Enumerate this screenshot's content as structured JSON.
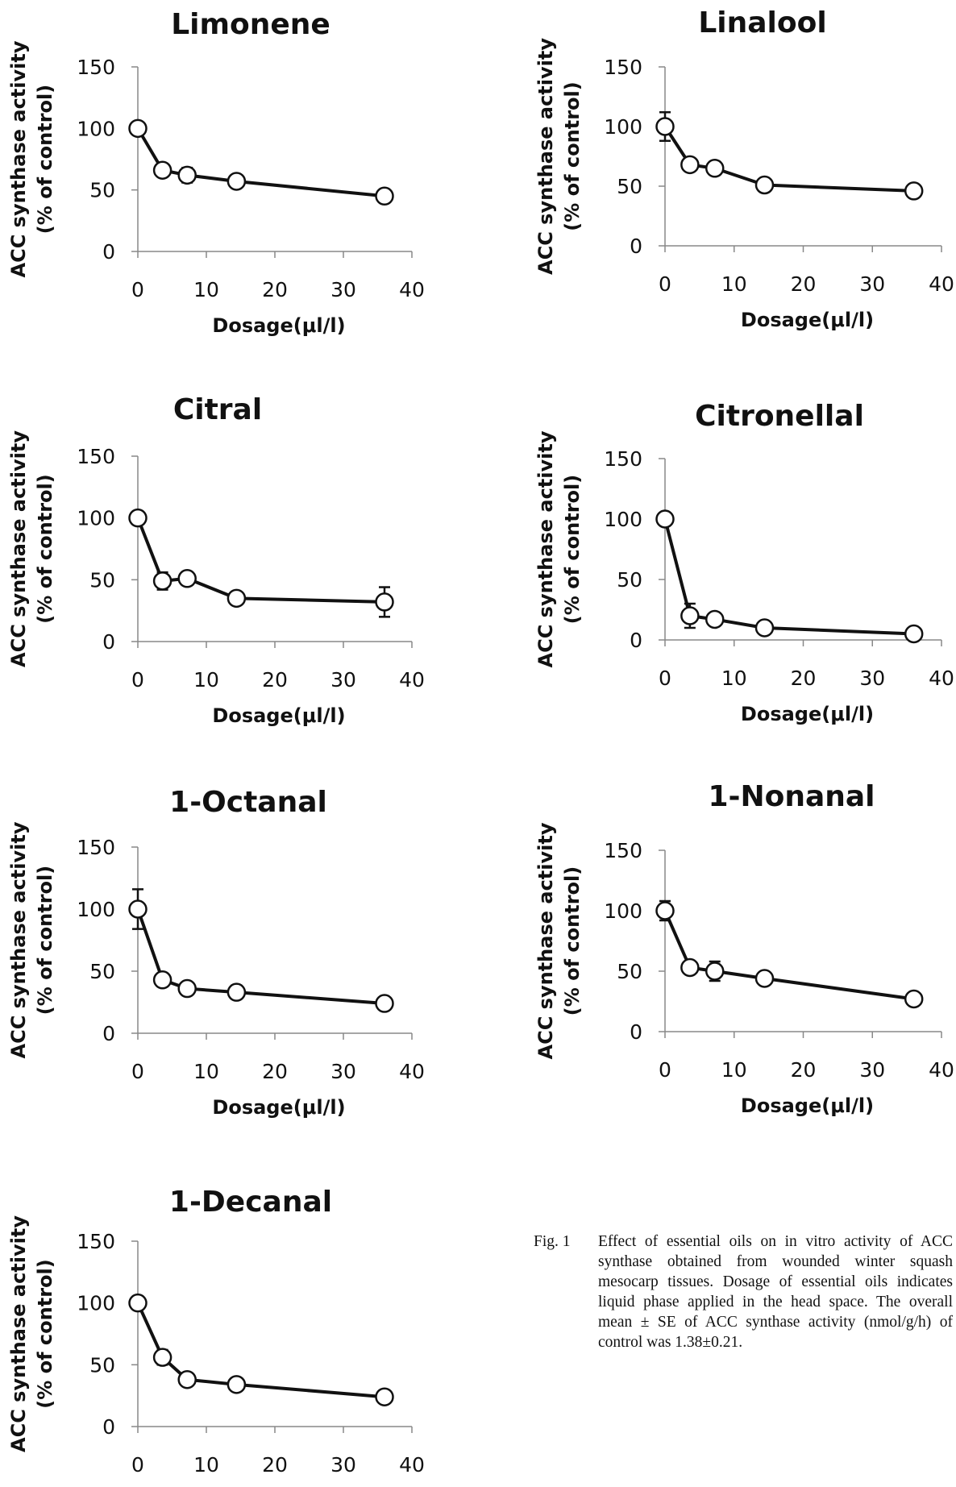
{
  "chart_data": [
    {
      "type": "line",
      "title": "Limonene",
      "xlabel": "Dosage(μl/l)",
      "ylabel": [
        "ACC synthase activity",
        "(% of control)"
      ],
      "xlim": [
        0,
        40
      ],
      "ylim": [
        0,
        150
      ],
      "xticks": [
        "0",
        "10",
        "20",
        "30",
        "40"
      ],
      "yticks": [
        "0",
        "50",
        "100",
        "150"
      ],
      "x": [
        0,
        3.6,
        7.2,
        14.4,
        36
      ],
      "y": [
        100,
        66,
        62,
        57,
        45
      ],
      "err": [
        0,
        0,
        6,
        5,
        0
      ]
    },
    {
      "type": "line",
      "title": "Linalool",
      "xlabel": "Dosage(μl/l)",
      "ylabel": [
        "ACC synthase activity",
        "(% of control)"
      ],
      "xlim": [
        0,
        40
      ],
      "ylim": [
        0,
        150
      ],
      "xticks": [
        "0",
        "10",
        "20",
        "30",
        "40"
      ],
      "yticks": [
        "0",
        "50",
        "100",
        "150"
      ],
      "x": [
        0,
        3.6,
        7.2,
        14.4,
        36
      ],
      "y": [
        100,
        68,
        65,
        51,
        46
      ],
      "err": [
        12,
        0,
        0,
        0,
        0
      ]
    },
    {
      "type": "line",
      "title": "Citral",
      "xlabel": "Dosage(μl/l)",
      "ylabel": [
        "ACC synthase activity",
        "(% of control)"
      ],
      "xlim": [
        0,
        40
      ],
      "ylim": [
        0,
        150
      ],
      "xticks": [
        "0",
        "10",
        "20",
        "30",
        "40"
      ],
      "yticks": [
        "0",
        "50",
        "100",
        "150"
      ],
      "x": [
        0,
        3.6,
        7.2,
        14.4,
        36
      ],
      "y": [
        100,
        49,
        51,
        35,
        32
      ],
      "err": [
        0,
        7,
        0,
        0,
        12
      ]
    },
    {
      "type": "line",
      "title": "Citronellal",
      "xlabel": "Dosage(μl/l)",
      "ylabel": [
        "ACC synthase activity",
        "(% of control)"
      ],
      "xlim": [
        0,
        40
      ],
      "ylim": [
        0,
        150
      ],
      "xticks": [
        "0",
        "10",
        "20",
        "30",
        "40"
      ],
      "yticks": [
        "0",
        "50",
        "100",
        "150"
      ],
      "x": [
        0,
        3.6,
        7.2,
        14.4,
        36
      ],
      "y": [
        100,
        20,
        17,
        10,
        5
      ],
      "err": [
        0,
        10,
        0,
        0,
        0
      ]
    },
    {
      "type": "line",
      "title": "1-Octanal",
      "xlabel": "Dosage(μl/l)",
      "ylabel": [
        "ACC synthase activity",
        "(% of control)"
      ],
      "xlim": [
        0,
        40
      ],
      "ylim": [
        0,
        150
      ],
      "xticks": [
        "0",
        "10",
        "20",
        "30",
        "40"
      ],
      "yticks": [
        "0",
        "50",
        "100",
        "150"
      ],
      "x": [
        0,
        3.6,
        7.2,
        14.4,
        36
      ],
      "y": [
        100,
        43,
        36,
        33,
        24
      ],
      "err": [
        16,
        0,
        0,
        0,
        0
      ]
    },
    {
      "type": "line",
      "title": "1-Nonanal",
      "xlabel": "Dosage(μl/l)",
      "ylabel": [
        "ACC synthase activity",
        "(% of control)"
      ],
      "xlim": [
        0,
        40
      ],
      "ylim": [
        0,
        150
      ],
      "xticks": [
        "0",
        "10",
        "20",
        "30",
        "40"
      ],
      "yticks": [
        "0",
        "50",
        "100",
        "150"
      ],
      "x": [
        0,
        3.6,
        7.2,
        14.4,
        36
      ],
      "y": [
        100,
        53,
        50,
        44,
        27
      ],
      "err": [
        8,
        0,
        8,
        0,
        0
      ]
    },
    {
      "type": "line",
      "title": "1-Decanal",
      "xlabel": "Dosage(μl/l)",
      "ylabel": [
        "ACC synthase activity",
        "(% of control)"
      ],
      "xlim": [
        0,
        40
      ],
      "ylim": [
        0,
        150
      ],
      "xticks": [
        "0",
        "10",
        "20",
        "30",
        "40"
      ],
      "yticks": [
        "0",
        "50",
        "100",
        "150"
      ],
      "x": [
        0,
        3.6,
        7.2,
        14.4,
        36
      ],
      "y": [
        100,
        56,
        38,
        34,
        24
      ],
      "err": [
        0,
        6,
        0,
        0,
        0
      ]
    }
  ],
  "caption": {
    "prefix": "Fig. 1",
    "text": "Effect of essential oils on in vitro activity of ACC synthase obtained from wounded winter squash mesocarp tissues. Dosage of essential oils indicates liquid phase applied in the head space. The overall mean ± SE of ACC synthase activity (nmol/g/h) of control was 1.38±0.21."
  }
}
